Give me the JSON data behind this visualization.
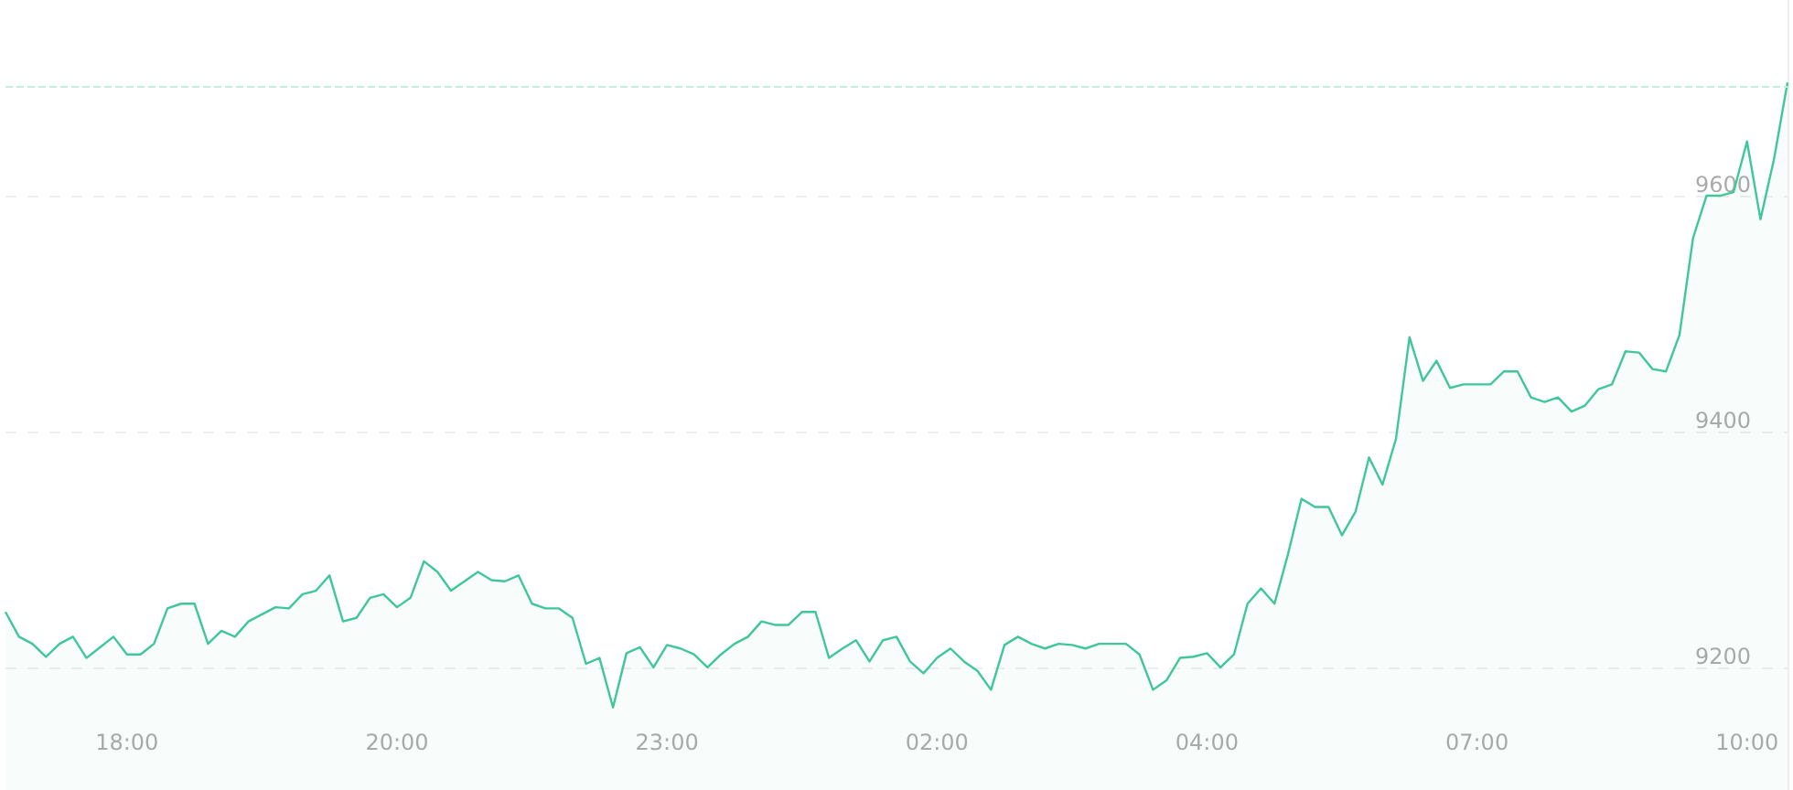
{
  "chart_data": {
    "type": "area",
    "categories": [
      null,
      null,
      null,
      null,
      null,
      null,
      null,
      null,
      null,
      "18:00",
      null,
      null,
      null,
      null,
      null,
      null,
      null,
      null,
      null,
      null,
      null,
      null,
      null,
      null,
      null,
      null,
      null,
      null,
      null,
      "20:00",
      null,
      null,
      null,
      null,
      null,
      null,
      null,
      null,
      null,
      null,
      null,
      null,
      null,
      null,
      null,
      null,
      null,
      null,
      null,
      "23:00",
      null,
      null,
      null,
      null,
      null,
      null,
      null,
      null,
      null,
      null,
      null,
      null,
      null,
      null,
      null,
      null,
      null,
      null,
      null,
      "02:00",
      null,
      null,
      null,
      null,
      null,
      null,
      null,
      null,
      null,
      null,
      null,
      null,
      null,
      null,
      null,
      null,
      null,
      null,
      null,
      "04:00",
      null,
      null,
      null,
      null,
      null,
      null,
      null,
      null,
      null,
      null,
      null,
      null,
      null,
      null,
      null,
      null,
      null,
      null,
      null,
      "07:00",
      null,
      null,
      null,
      null,
      null,
      null,
      null,
      null,
      null,
      null,
      null,
      null,
      null,
      null,
      null,
      null,
      null,
      null,
      null,
      "10:00",
      null,
      null,
      null
    ],
    "series": [
      {
        "color": "#40c69b",
        "values": [
          9247,
          9226,
          9220,
          9209,
          9220,
          9226,
          9208,
          9217,
          9226,
          9211,
          9211,
          9220,
          9250,
          9254,
          9254,
          9220,
          9231,
          9226,
          9239,
          9245,
          9251,
          9250,
          9262,
          9265,
          9278,
          9239,
          9242,
          9259,
          9262,
          9251,
          9259,
          9290,
          9281,
          9265,
          9273,
          9281,
          9274,
          9273,
          9278,
          9254,
          9250,
          9250,
          9242,
          9203,
          9208,
          9166,
          9212,
          9217,
          9200,
          9219,
          9216,
          9211,
          9200,
          9211,
          9220,
          9226,
          9239,
          9236,
          9236,
          9247,
          9247,
          9208,
          9216,
          9223,
          9205,
          9223,
          9226,
          9205,
          9195,
          9208,
          9216,
          9205,
          9197,
          9181,
          9219,
          9226,
          9220,
          9216,
          9220,
          9219,
          9216,
          9220,
          9220,
          9220,
          9211,
          9181,
          9189,
          9208,
          9209,
          9212,
          9200,
          9211,
          9254,
          9267,
          9254,
          9296,
          9343,
          9336,
          9336,
          9312,
          9332,
          9378,
          9355,
          9394,
          9480,
          9443,
          9460,
          9437,
          9440,
          9440,
          9440,
          9451,
          9451,
          9429,
          9425,
          9429,
          9417,
          9422,
          9436,
          9440,
          9468,
          9467,
          9453,
          9451,
          9482,
          9564,
          9600,
          9600,
          9603,
          9646,
          9580,
          9631,
          9696
        ]
      }
    ],
    "ylim": [
      9096,
      9766
    ],
    "yticks": [
      9200,
      9400,
      9600
    ],
    "grid": "y",
    "marker": "none",
    "line_style": "solid",
    "ref_lines": [
      {
        "axis": "y",
        "value": 9693,
        "color": "#c3ede0",
        "line_style": "dashed"
      }
    ]
  }
}
